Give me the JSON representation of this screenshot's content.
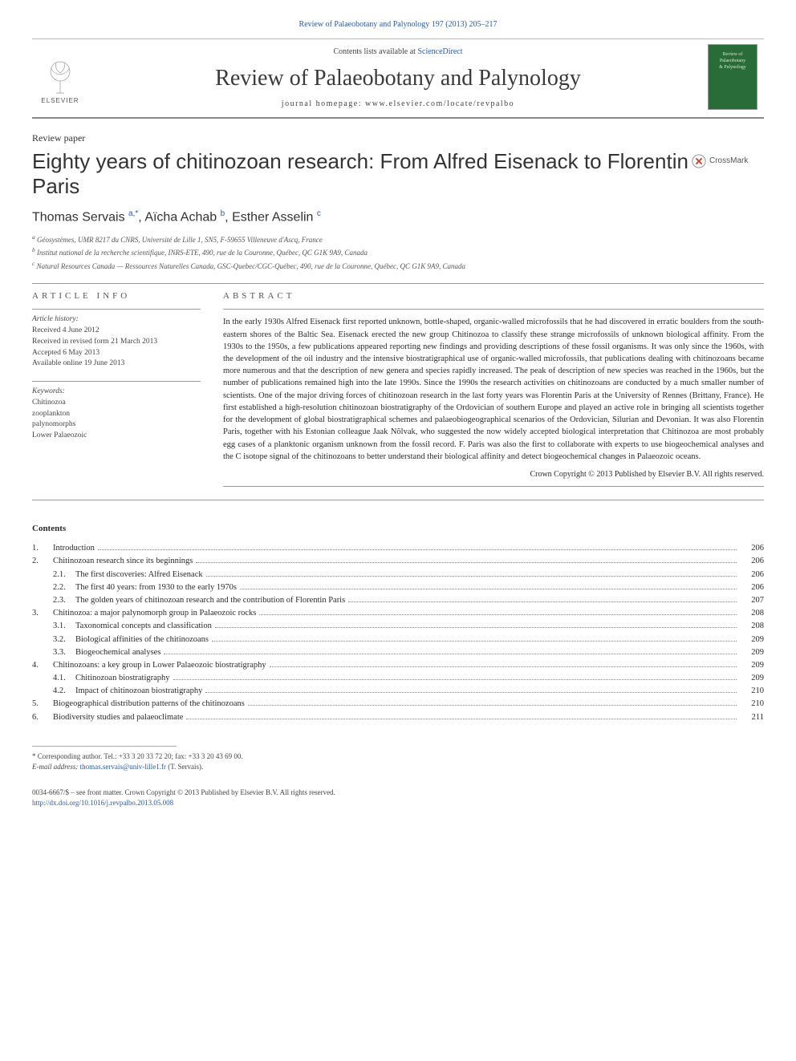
{
  "header": {
    "citation_link": "Review of Palaeobotany and Palynology 197 (2013) 205–217",
    "contents_prefix": "Contents lists available at ",
    "contents_link": "ScienceDirect",
    "journal_title": "Review of Palaeobotany and Palynology",
    "homepage_label": "journal homepage: www.elsevier.com/locate/revpalbo",
    "elsevier_label": "ELSEVIER",
    "cover_line1": "Review of",
    "cover_line2": "Palaeobotany",
    "cover_line3": "& Palynology"
  },
  "crossmark_label": "CrossMark",
  "article": {
    "type": "Review paper",
    "title": "Eighty years of chitinozoan research: From Alfred Eisenack to Florentin Paris",
    "authors_html_parts": {
      "a1": "Thomas Servais ",
      "a1_sup": "a,",
      "a1_star": "*",
      "sep1": ", ",
      "a2": "Aïcha Achab ",
      "a2_sup": "b",
      "sep2": ", ",
      "a3": "Esther Asselin ",
      "a3_sup": "c"
    },
    "affiliations": {
      "a": "Géosystèmes, UMR 8217 du CNRS, Université de Lille 1, SN5, F-59655 Villeneuve d'Ascq, France",
      "b": "Institut national de la recherche scientifique, INRS-ETE, 490, rue de la Couronne, Québec, QC G1K 9A9, Canada",
      "c": "Natural Resources Canada — Ressources Naturelles Canada, GSC-Quebec/CGC-Québec, 490, rue de la Couronne, Québec, QC G1K 9A9, Canada"
    }
  },
  "info": {
    "heading": "article info",
    "history_label": "Article history:",
    "received": "Received 4 June 2012",
    "revised": "Received in revised form 21 March 2013",
    "accepted": "Accepted 6 May 2013",
    "online": "Available online 19 June 2013",
    "keywords_label": "Keywords:",
    "keywords": [
      "Chitinozoa",
      "zooplankton",
      "palynomorphs",
      "Lower Palaeozoic"
    ]
  },
  "abstract": {
    "heading": "abstract",
    "text": "In the early 1930s Alfred Eisenack first reported unknown, bottle-shaped, organic-walled microfossils that he had discovered in erratic boulders from the south-eastern shores of the Baltic Sea. Eisenack erected the new group Chitinozoa to classify these strange microfossils of unknown biological affinity. From the 1930s to the 1950s, a few publications appeared reporting new findings and providing descriptions of these fossil organisms. It was only since the 1960s, with the development of the oil industry and the intensive biostratigraphical use of organic-walled microfossils, that publications dealing with chitinozoans became more numerous and that the description of new genera and species rapidly increased. The peak of description of new species was reached in the 1960s, but the number of publications remained high into the late 1990s. Since the 1990s the research activities on chitinozoans are conducted by a much smaller number of scientists. One of the major driving forces of chitinozoan research in the last forty years was Florentin Paris at the University of Rennes (Brittany, France). He first established a high-resolution chitinozoan biostratigraphy of the Ordovician of southern Europe and played an active role in bringing all scientists together for the development of global biostratigraphical schemes and palaeobiogeographical scenarios of the Ordovician, Silurian and Devonian. It was also Florentin Paris, together with his Estonian colleague Jaak Nõlvak, who suggested the now widely accepted biological interpretation that Chitinozoa are most probably egg cases of a planktonic organism unknown from the fossil record. F. Paris was also the first to collaborate with experts to use biogeochemical analyses and the C isotope signal of the chitinozoans to better understand their biological affinity and detect biogeochemical changes in Palaeozoic oceans.",
    "copyright": "Crown Copyright © 2013 Published by Elsevier B.V. All rights reserved."
  },
  "contents": {
    "heading": "Contents",
    "items": [
      {
        "num": "1.",
        "label": "Introduction",
        "page": "206"
      },
      {
        "num": "2.",
        "label": "Chitinozoan research since its beginnings",
        "page": "206"
      },
      {
        "num": "2.1.",
        "label": "The first discoveries: Alfred Eisenack",
        "page": "206",
        "indent": 1
      },
      {
        "num": "2.2.",
        "label": "The first 40 years: from 1930 to the early 1970s",
        "page": "206",
        "indent": 1
      },
      {
        "num": "2.3.",
        "label": "The golden years of chitinozoan research and the contribution of Florentin Paris",
        "page": "207",
        "indent": 1
      },
      {
        "num": "3.",
        "label": "Chitinozoa: a major palynomorph group in Palaeozoic rocks",
        "page": "208"
      },
      {
        "num": "3.1.",
        "label": "Taxonomical concepts and classification",
        "page": "208",
        "indent": 1
      },
      {
        "num": "3.2.",
        "label": "Biological affinities of the chitinozoans",
        "page": "209",
        "indent": 1
      },
      {
        "num": "3.3.",
        "label": "Biogeochemical analyses",
        "page": "209",
        "indent": 1
      },
      {
        "num": "4.",
        "label": "Chitinozoans: a key group in Lower Palaeozoic biostratigraphy",
        "page": "209"
      },
      {
        "num": "4.1.",
        "label": "Chitinozoan biostratigraphy",
        "page": "209",
        "indent": 1
      },
      {
        "num": "4.2.",
        "label": "Impact of chitinozoan biostratigraphy",
        "page": "210",
        "indent": 1
      },
      {
        "num": "5.",
        "label": "Biogeographical distribution patterns of the chitinozoans",
        "page": "210"
      },
      {
        "num": "6.",
        "label": "Biodiversity studies and palaeoclimate",
        "page": "211"
      }
    ]
  },
  "footnote": {
    "corr_label": "* Corresponding author. Tel.: +33 3 20 33 72 20; fax: +33 3 20 43 69 00.",
    "email_label": "E-mail address: ",
    "email": "thomas.servais@univ-lille1.fr",
    "email_suffix": " (T. Servais)."
  },
  "footer": {
    "issn_line": "0034-6667/$ – see front matter. Crown Copyright © 2013 Published by Elsevier B.V. All rights reserved.",
    "doi": "http://dx.doi.org/10.1016/j.revpalbo.2013.05.008"
  },
  "colors": {
    "link": "#2e5a9e",
    "text": "#2b2b2b",
    "rule": "#999999",
    "cover_bg": "#2a6b3a"
  }
}
